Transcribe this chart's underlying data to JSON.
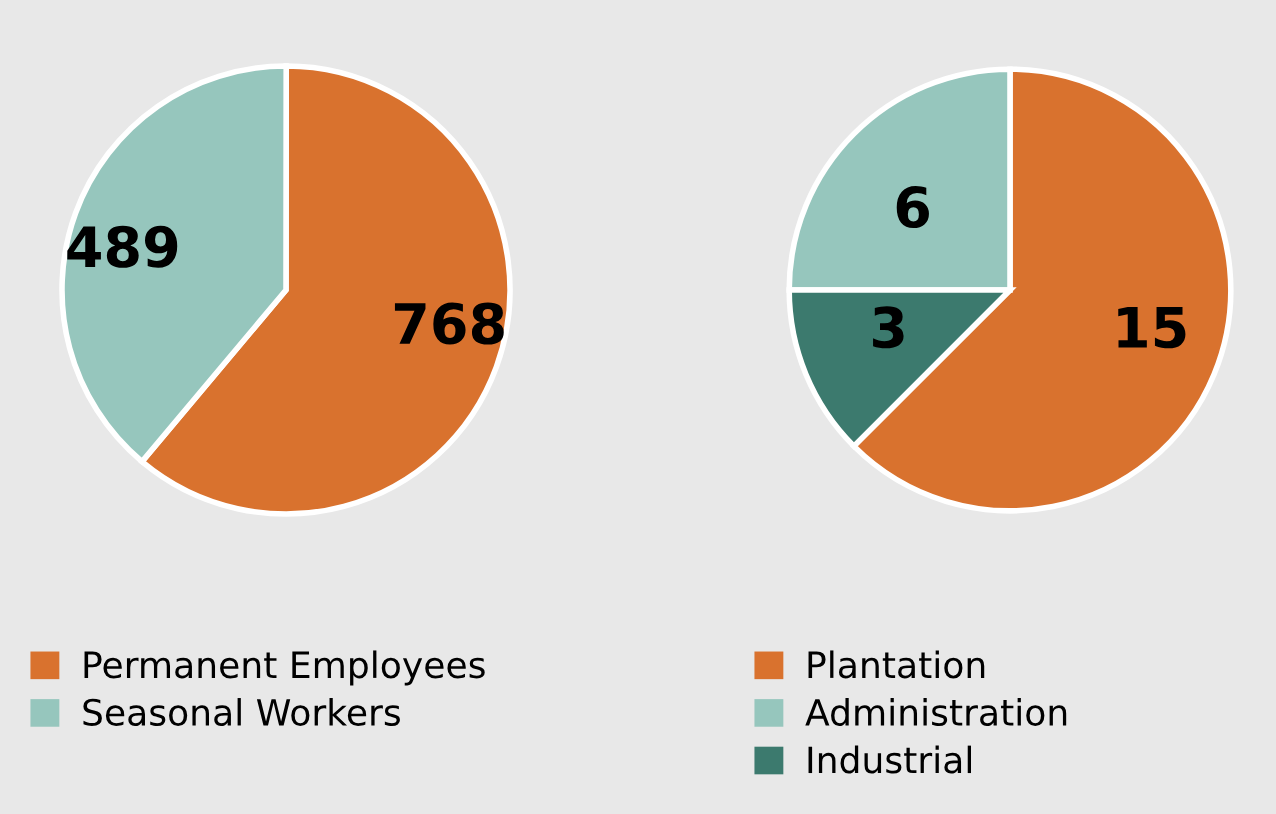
{
  "chart_data": [
    {
      "type": "pie",
      "categories": [
        "Permanent Employees",
        "Seasonal Workers"
      ],
      "values": [
        768,
        489
      ],
      "colors": [
        "#d9722e",
        "#96c6bd"
      ],
      "data_labels": true,
      "legend": "bottom"
    },
    {
      "type": "pie",
      "categories": [
        "Plantation",
        "Administration",
        "Industrial"
      ],
      "values": [
        15,
        6,
        3
      ],
      "colors": [
        "#d9722e",
        "#96c6bd",
        "#3c7a6e"
      ],
      "data_labels": true,
      "legend": "bottom"
    }
  ]
}
